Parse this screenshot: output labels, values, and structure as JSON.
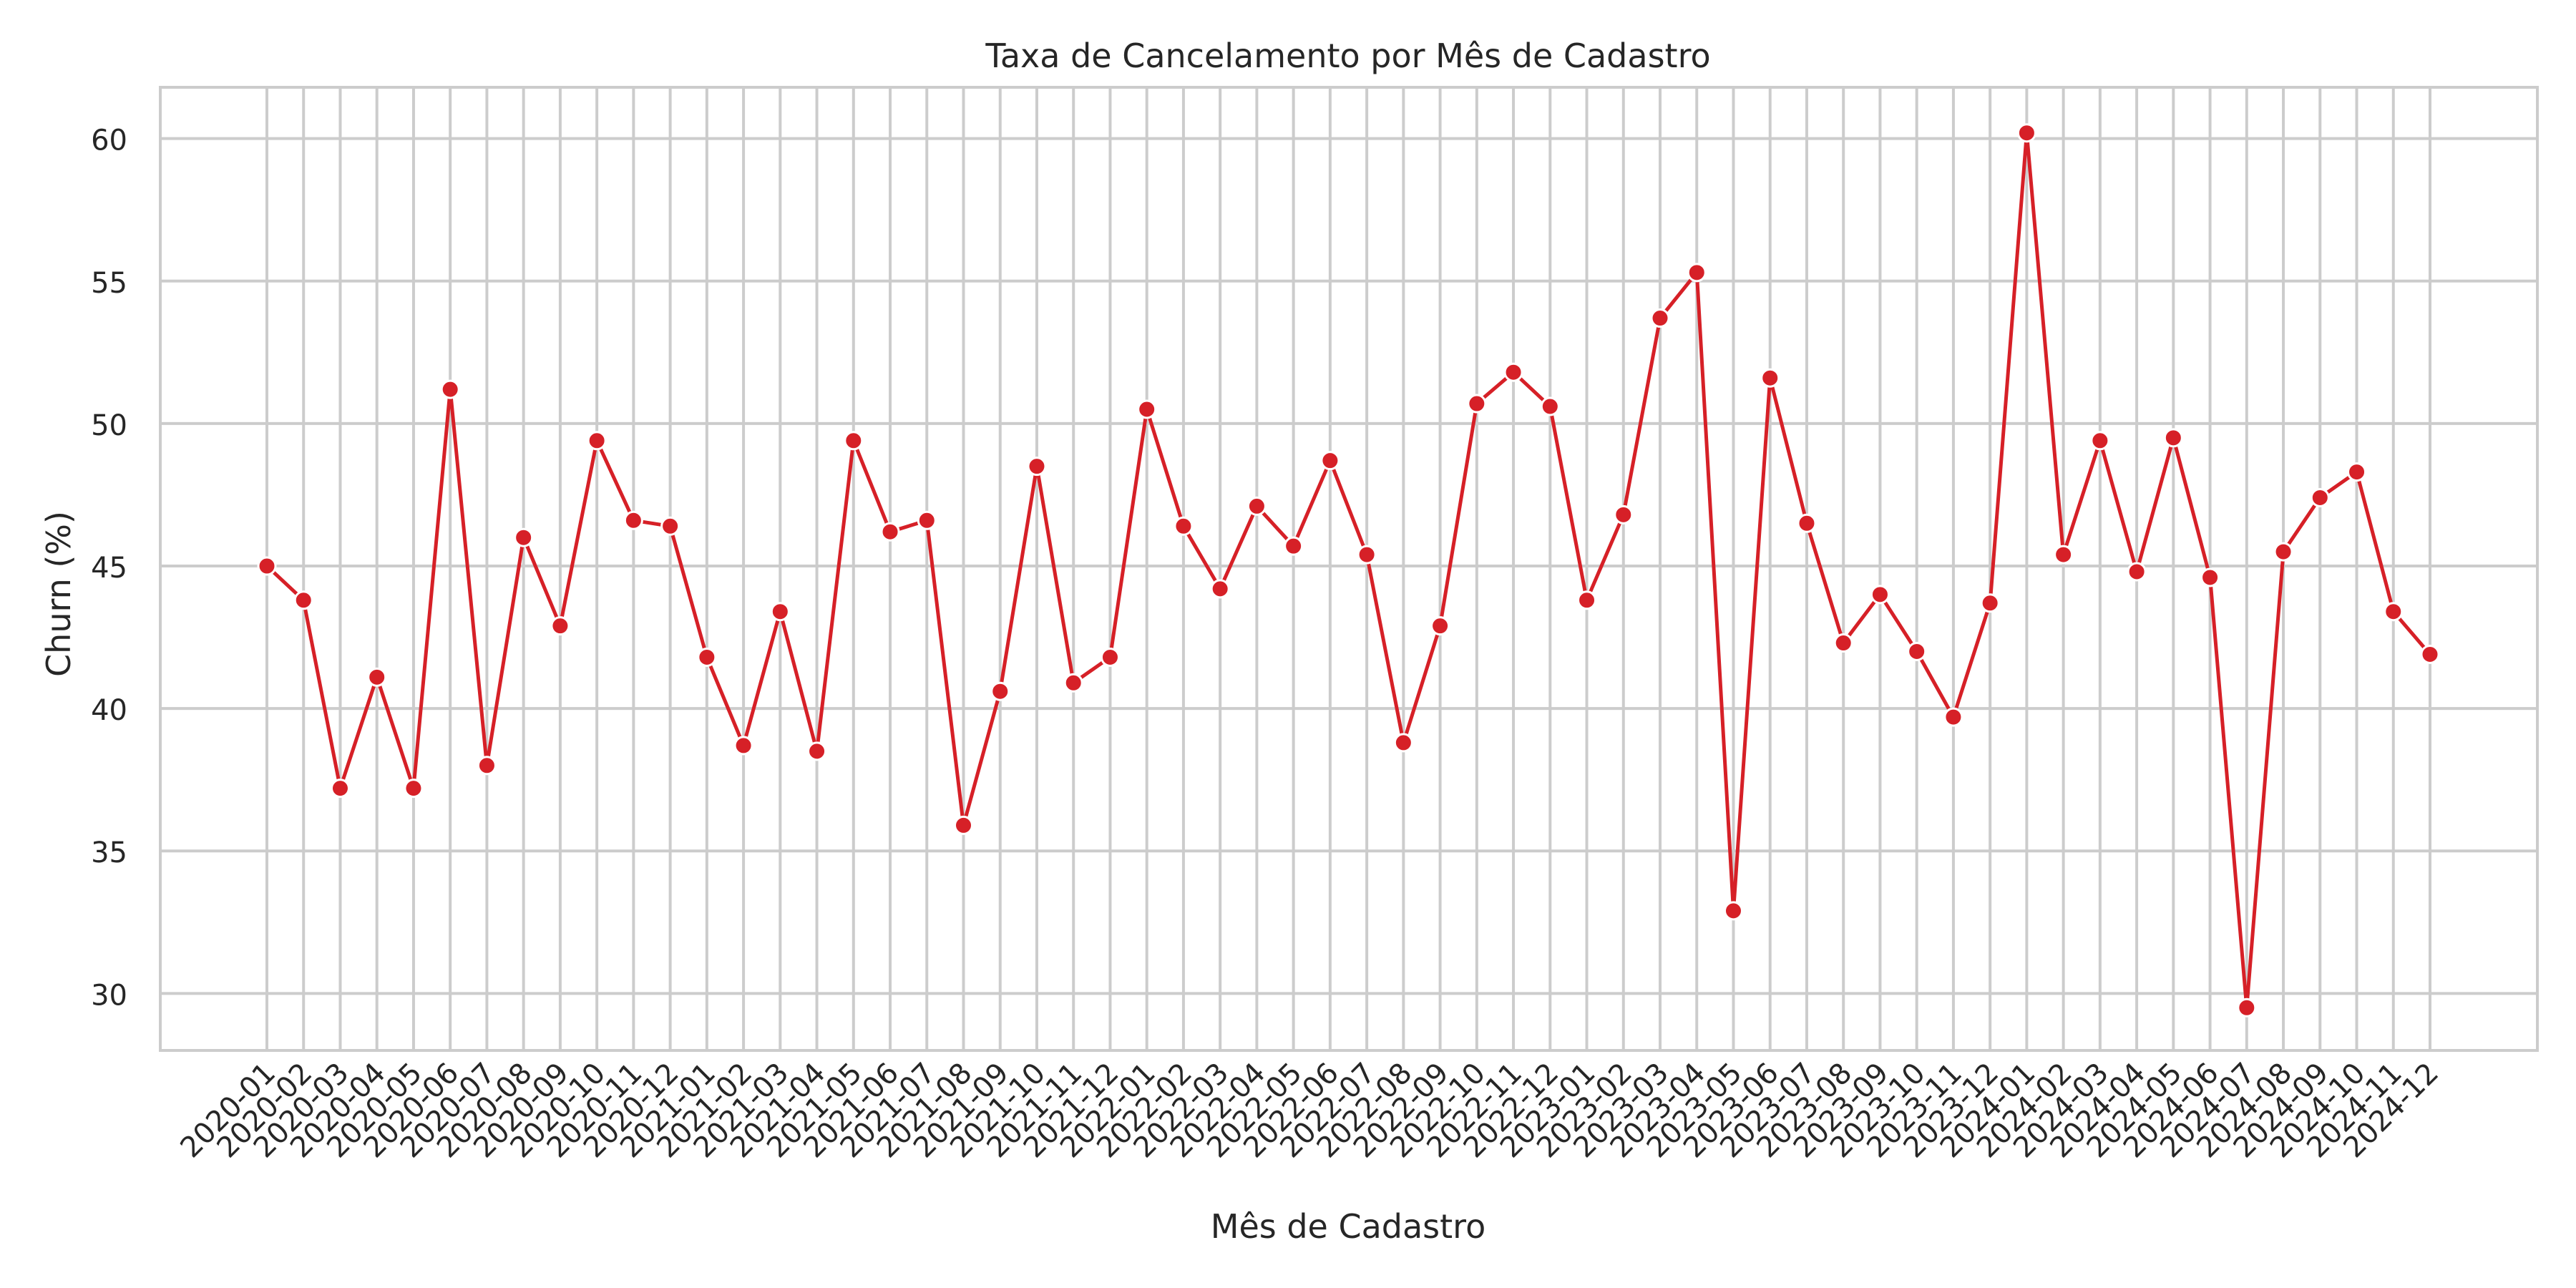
{
  "colors": {
    "line": "#d62027",
    "marker_edge": "#ffffff",
    "grid": "#cccccc",
    "frame": "#cccccc",
    "text": "#262626",
    "background": "#ffffff"
  },
  "chart_data": {
    "type": "line",
    "title": "Taxa de Cancelamento por Mês de Cadastro",
    "xlabel": "Mês de Cadastro",
    "ylabel": "Churn (%)",
    "ylim": [
      28,
      61.8
    ],
    "yticks": [
      30,
      35,
      40,
      45,
      50,
      55,
      60
    ],
    "grid": true,
    "marker": "circle",
    "categories": [
      "2020-01",
      "2020-02",
      "2020-03",
      "2020-04",
      "2020-05",
      "2020-06",
      "2020-07",
      "2020-08",
      "2020-09",
      "2020-10",
      "2020-11",
      "2020-12",
      "2021-01",
      "2021-02",
      "2021-03",
      "2021-04",
      "2021-05",
      "2021-06",
      "2021-07",
      "2021-08",
      "2021-09",
      "2021-10",
      "2021-11",
      "2021-12",
      "2022-01",
      "2022-02",
      "2022-03",
      "2022-04",
      "2022-05",
      "2022-06",
      "2022-07",
      "2022-08",
      "2022-09",
      "2022-10",
      "2022-11",
      "2022-12",
      "2023-01",
      "2023-02",
      "2023-03",
      "2023-04",
      "2023-05",
      "2023-06",
      "2023-07",
      "2023-08",
      "2023-09",
      "2023-10",
      "2023-11",
      "2023-12",
      "2024-01",
      "2024-02",
      "2024-03",
      "2024-04",
      "2024-05",
      "2024-06",
      "2024-07",
      "2024-08",
      "2024-09",
      "2024-10",
      "2024-11",
      "2024-12"
    ],
    "values": [
      45.0,
      43.8,
      37.2,
      41.1,
      37.2,
      51.2,
      38.0,
      46.0,
      42.9,
      49.4,
      46.6,
      46.4,
      41.8,
      38.7,
      43.4,
      38.5,
      49.4,
      46.2,
      46.6,
      35.9,
      40.6,
      48.5,
      40.9,
      41.8,
      50.5,
      46.4,
      44.2,
      47.1,
      45.7,
      48.7,
      45.4,
      38.8,
      42.9,
      50.7,
      51.8,
      50.6,
      43.8,
      46.8,
      53.7,
      55.3,
      32.9,
      51.6,
      46.5,
      42.3,
      44.0,
      42.0,
      39.7,
      43.7,
      60.2,
      45.4,
      49.4,
      44.8,
      49.5,
      44.6,
      29.5,
      45.5,
      47.4,
      48.3,
      43.4,
      41.9
    ]
  }
}
